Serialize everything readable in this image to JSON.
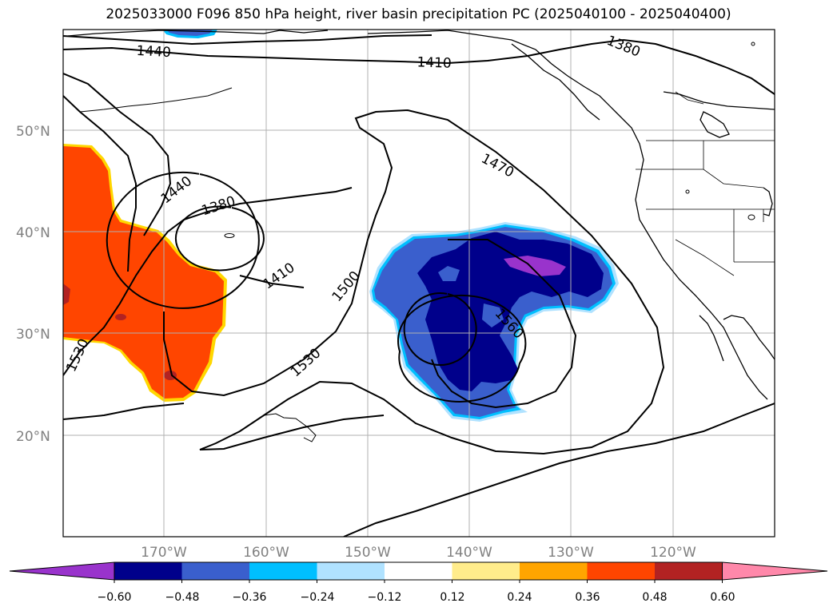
{
  "title": "2025033000 F096 850 hPa height, river basin precipitation PC (2025040100 - 2025040400)",
  "lat_labels": [
    "50°N",
    "40°N",
    "30°N",
    "20°N"
  ],
  "lon_labels": [
    "170°W",
    "160°W",
    "150°W",
    "140°W",
    "130°W",
    "120°W"
  ],
  "contour_labels": [
    "1440",
    "1410",
    "1380",
    "1470",
    "1440",
    "1380",
    "1410",
    "1500",
    "1530",
    "1560",
    "1530"
  ],
  "colorbar": {
    "colors": [
      "#9933cc",
      "#00008b",
      "#3a5fcd",
      "#00bfff",
      "#b0e2ff",
      "#ffffff",
      "#ffec8b",
      "#ffa500",
      "#ff4500",
      "#b22222",
      "#ff88aa"
    ],
    "tick_labels": [
      "−0.60",
      "−0.48",
      "−0.36",
      "−0.24",
      "−0.12",
      "0.12",
      "0.24",
      "0.36",
      "0.48",
      "0.60"
    ]
  },
  "colors": {
    "positive_anomaly": "#ff4500",
    "negative_anomaly": "#3a5fcd",
    "strong_negative": "#00008b",
    "grid": "#b0b0b0"
  }
}
